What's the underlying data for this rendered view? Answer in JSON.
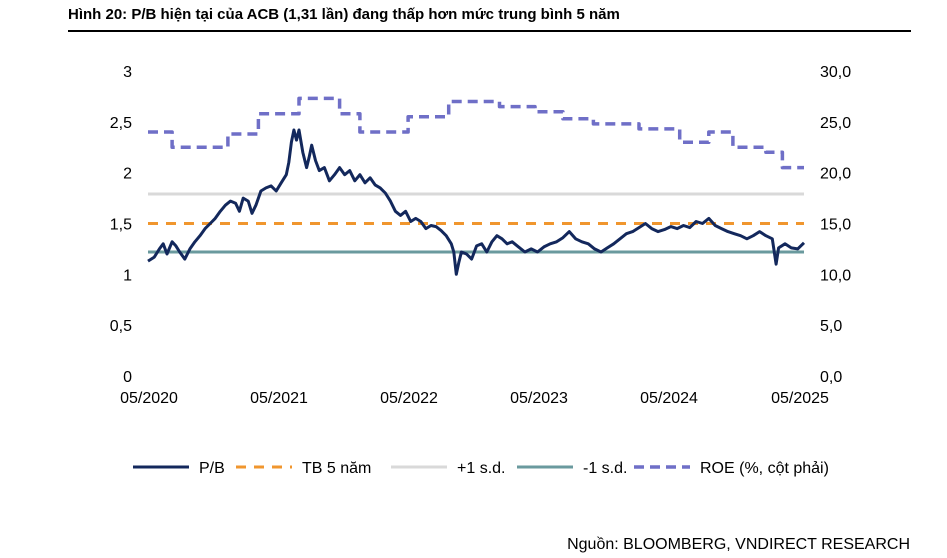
{
  "title": "Hình 20: P/B hiện tại của ACB (1,31 lần) đang thấp hơn mức trung bình 5 năm",
  "source": "Nguồn: BLOOMBERG, VNDIRECT RESEARCH",
  "chart_data": {
    "type": "line",
    "x_tick_labels": [
      "05/2020",
      "05/2021",
      "05/2022",
      "05/2023",
      "05/2024",
      "05/2025"
    ],
    "y_left_ticks": [
      "0",
      "0,5",
      "1",
      "1,5",
      "2",
      "2,5",
      "3"
    ],
    "y_right_ticks": [
      "0,0",
      "5,0",
      "10,0",
      "15,0",
      "20,0",
      "25,0",
      "30,0"
    ],
    "ylim_left": [
      0,
      3
    ],
    "ylim_right": [
      0,
      30
    ],
    "xlim": [
      2020.33,
      2025.5
    ],
    "grid": false,
    "legend_position": "bottom",
    "colors": {
      "pb": "#13285c",
      "avg": "#f0962e",
      "plus_sd": "#d9d9d9",
      "minus_sd": "#6a9a9e",
      "roe": "#6f6fc7"
    },
    "series": [
      {
        "name": "P/B",
        "style": "solid",
        "axis": "left",
        "points": [
          [
            2020.33,
            1.13
          ],
          [
            2020.38,
            1.17
          ],
          [
            2020.42,
            1.25
          ],
          [
            2020.45,
            1.3
          ],
          [
            2020.48,
            1.2
          ],
          [
            2020.52,
            1.32
          ],
          [
            2020.55,
            1.28
          ],
          [
            2020.58,
            1.22
          ],
          [
            2020.62,
            1.15
          ],
          [
            2020.66,
            1.25
          ],
          [
            2020.7,
            1.32
          ],
          [
            2020.74,
            1.38
          ],
          [
            2020.78,
            1.45
          ],
          [
            2020.82,
            1.5
          ],
          [
            2020.86,
            1.55
          ],
          [
            2020.9,
            1.62
          ],
          [
            2020.94,
            1.68
          ],
          [
            2020.98,
            1.72
          ],
          [
            2021.02,
            1.7
          ],
          [
            2021.05,
            1.62
          ],
          [
            2021.08,
            1.75
          ],
          [
            2021.12,
            1.72
          ],
          [
            2021.15,
            1.6
          ],
          [
            2021.18,
            1.68
          ],
          [
            2021.22,
            1.82
          ],
          [
            2021.26,
            1.85
          ],
          [
            2021.3,
            1.87
          ],
          [
            2021.34,
            1.82
          ],
          [
            2021.38,
            1.9
          ],
          [
            2021.42,
            1.98
          ],
          [
            2021.44,
            2.1
          ],
          [
            2021.46,
            2.3
          ],
          [
            2021.48,
            2.42
          ],
          [
            2021.5,
            2.32
          ],
          [
            2021.52,
            2.42
          ],
          [
            2021.55,
            2.2
          ],
          [
            2021.58,
            2.05
          ],
          [
            2021.6,
            2.15
          ],
          [
            2021.62,
            2.27
          ],
          [
            2021.65,
            2.12
          ],
          [
            2021.68,
            2.02
          ],
          [
            2021.72,
            2.05
          ],
          [
            2021.76,
            1.92
          ],
          [
            2021.8,
            1.98
          ],
          [
            2021.84,
            2.05
          ],
          [
            2021.88,
            1.98
          ],
          [
            2021.92,
            2.02
          ],
          [
            2021.96,
            1.92
          ],
          [
            2022.0,
            1.98
          ],
          [
            2022.04,
            1.9
          ],
          [
            2022.08,
            1.95
          ],
          [
            2022.12,
            1.88
          ],
          [
            2022.16,
            1.85
          ],
          [
            2022.2,
            1.8
          ],
          [
            2022.24,
            1.72
          ],
          [
            2022.28,
            1.62
          ],
          [
            2022.32,
            1.58
          ],
          [
            2022.36,
            1.62
          ],
          [
            2022.4,
            1.52
          ],
          [
            2022.44,
            1.55
          ],
          [
            2022.48,
            1.52
          ],
          [
            2022.52,
            1.45
          ],
          [
            2022.56,
            1.48
          ],
          [
            2022.6,
            1.47
          ],
          [
            2022.64,
            1.43
          ],
          [
            2022.68,
            1.38
          ],
          [
            2022.72,
            1.3
          ],
          [
            2022.74,
            1.22
          ],
          [
            2022.76,
            1.0
          ],
          [
            2022.78,
            1.12
          ],
          [
            2022.8,
            1.22
          ],
          [
            2022.84,
            1.2
          ],
          [
            2022.88,
            1.15
          ],
          [
            2022.92,
            1.28
          ],
          [
            2022.96,
            1.3
          ],
          [
            2023.0,
            1.22
          ],
          [
            2023.04,
            1.32
          ],
          [
            2023.08,
            1.38
          ],
          [
            2023.12,
            1.35
          ],
          [
            2023.16,
            1.3
          ],
          [
            2023.2,
            1.32
          ],
          [
            2023.25,
            1.27
          ],
          [
            2023.3,
            1.22
          ],
          [
            2023.35,
            1.25
          ],
          [
            2023.4,
            1.22
          ],
          [
            2023.45,
            1.27
          ],
          [
            2023.5,
            1.3
          ],
          [
            2023.55,
            1.32
          ],
          [
            2023.6,
            1.36
          ],
          [
            2023.65,
            1.42
          ],
          [
            2023.7,
            1.35
          ],
          [
            2023.75,
            1.32
          ],
          [
            2023.8,
            1.3
          ],
          [
            2023.85,
            1.25
          ],
          [
            2023.9,
            1.22
          ],
          [
            2023.95,
            1.26
          ],
          [
            2024.0,
            1.3
          ],
          [
            2024.05,
            1.35
          ],
          [
            2024.1,
            1.4
          ],
          [
            2024.15,
            1.42
          ],
          [
            2024.2,
            1.46
          ],
          [
            2024.25,
            1.5
          ],
          [
            2024.3,
            1.45
          ],
          [
            2024.35,
            1.42
          ],
          [
            2024.4,
            1.44
          ],
          [
            2024.45,
            1.47
          ],
          [
            2024.5,
            1.45
          ],
          [
            2024.55,
            1.48
          ],
          [
            2024.6,
            1.46
          ],
          [
            2024.65,
            1.52
          ],
          [
            2024.7,
            1.5
          ],
          [
            2024.75,
            1.55
          ],
          [
            2024.8,
            1.48
          ],
          [
            2024.85,
            1.45
          ],
          [
            2024.9,
            1.42
          ],
          [
            2024.95,
            1.4
          ],
          [
            2025.0,
            1.38
          ],
          [
            2025.05,
            1.35
          ],
          [
            2025.1,
            1.38
          ],
          [
            2025.15,
            1.42
          ],
          [
            2025.2,
            1.38
          ],
          [
            2025.25,
            1.35
          ],
          [
            2025.28,
            1.1
          ],
          [
            2025.3,
            1.26
          ],
          [
            2025.35,
            1.3
          ],
          [
            2025.4,
            1.26
          ],
          [
            2025.45,
            1.25
          ],
          [
            2025.5,
            1.31
          ]
        ]
      },
      {
        "name": "TB 5 năm",
        "style": "dashed",
        "axis": "left",
        "points": [
          [
            2020.33,
            1.5
          ],
          [
            2025.5,
            1.5
          ]
        ]
      },
      {
        "name": "+1 s.d.",
        "style": "solid",
        "axis": "left",
        "points": [
          [
            2020.33,
            1.79
          ],
          [
            2025.5,
            1.79
          ]
        ]
      },
      {
        "name": "-1 s.d.",
        "style": "solid",
        "axis": "left",
        "points": [
          [
            2020.33,
            1.22
          ],
          [
            2025.5,
            1.22
          ]
        ]
      },
      {
        "name": "ROE (%, cột phải)",
        "style": "dashed",
        "axis": "right",
        "points": [
          [
            2020.33,
            24.0
          ],
          [
            2020.52,
            24.0
          ],
          [
            2020.52,
            22.5
          ],
          [
            2020.96,
            22.5
          ],
          [
            2020.96,
            23.8
          ],
          [
            2021.2,
            23.8
          ],
          [
            2021.2,
            25.8
          ],
          [
            2021.52,
            25.8
          ],
          [
            2021.52,
            27.3
          ],
          [
            2021.84,
            27.3
          ],
          [
            2021.84,
            25.8
          ],
          [
            2022.0,
            25.8
          ],
          [
            2022.0,
            24.0
          ],
          [
            2022.38,
            24.0
          ],
          [
            2022.38,
            25.5
          ],
          [
            2022.7,
            25.5
          ],
          [
            2022.7,
            27.0
          ],
          [
            2023.1,
            27.0
          ],
          [
            2023.1,
            26.5
          ],
          [
            2023.38,
            26.5
          ],
          [
            2023.38,
            26.0
          ],
          [
            2023.6,
            26.0
          ],
          [
            2023.6,
            25.3
          ],
          [
            2023.84,
            25.3
          ],
          [
            2023.84,
            24.8
          ],
          [
            2024.2,
            24.8
          ],
          [
            2024.2,
            24.3
          ],
          [
            2024.52,
            24.3
          ],
          [
            2024.52,
            23.0
          ],
          [
            2024.75,
            23.0
          ],
          [
            2024.75,
            24.0
          ],
          [
            2024.94,
            24.0
          ],
          [
            2024.94,
            22.5
          ],
          [
            2025.2,
            22.5
          ],
          [
            2025.2,
            22.0
          ],
          [
            2025.33,
            22.0
          ],
          [
            2025.33,
            20.5
          ],
          [
            2025.5,
            20.5
          ]
        ]
      }
    ]
  }
}
